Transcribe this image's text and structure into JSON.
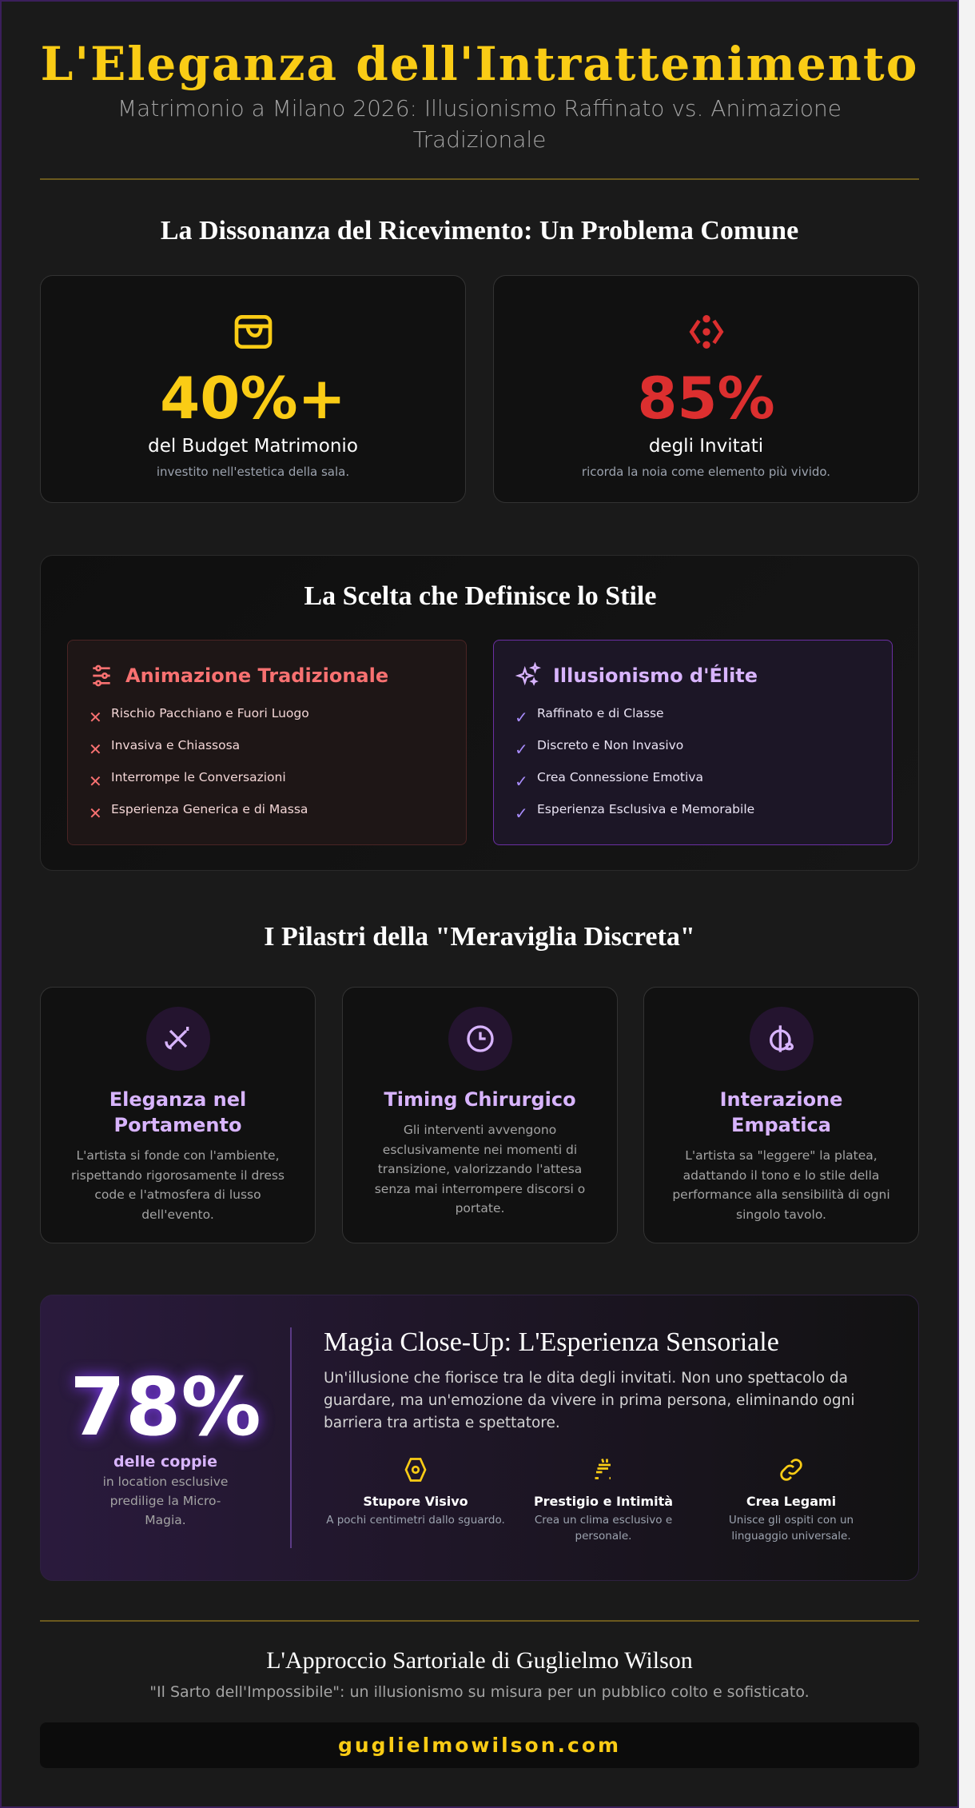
{
  "header": {
    "title": "L'Eleganza dell'Intrattenimento",
    "subtitle": "Matrimonio a Milano 2026: Illusionismo Raffinato vs. Animazione Tradizionale"
  },
  "problem": {
    "title": "La Dissonanza del Ricevimento: Un Problema Comune",
    "stats": [
      {
        "icon": "wallet-icon",
        "value": "40%+",
        "label": "del Budget Matrimonio",
        "sub": "investito nell'estetica della sala.",
        "color": "#facc15"
      },
      {
        "icon": "boredom-icon",
        "value": "85%",
        "label": "degli Invitati",
        "sub": "ricorda la noia come elemento più vivido.",
        "color": "#dc2f2f"
      }
    ]
  },
  "comparison": {
    "title": "La Scelta che Definisce lo Stile",
    "traditional": {
      "icon": "sliders-icon",
      "title": "Animazione Tradizionale",
      "color": "#f87171",
      "items": [
        "Rischio Pacchiano e Fuori Luogo",
        "Invasiva e Chiassosa",
        "Interrompe le Conversazioni",
        "Esperienza Generica e di Massa"
      ]
    },
    "elite": {
      "icon": "sparkles-icon",
      "title": "Illusionismo d'Élite",
      "color": "#d8b4fe",
      "items": [
        "Raffinato e di Classe",
        "Discreto e Non Invasivo",
        "Crea Connessione Emotiva",
        "Esperienza Esclusiva e Memorabile"
      ]
    }
  },
  "pillars": {
    "title": "I Pilastri della \"Meraviglia Discreta\"",
    "items": [
      {
        "icon": "magic-wand-icon",
        "title": "Eleganza nel Portamento",
        "desc": "L'artista si fonde con l'ambiente, rispettando rigorosamente il dress code e l'atmosfera di lusso dell'evento."
      },
      {
        "icon": "clock-icon",
        "title": "Timing Chirurgico",
        "desc": "Gli interventi avvengono esclusivamente nei momenti di transizione, valorizzando l'attesa senza mai interrompere discorsi o portate."
      },
      {
        "icon": "brain-heart-icon",
        "title": "Interazione Empatica",
        "desc": "L'artista sa \"leggere\" la platea, adattando il tono e lo stile della performance alla sensibilità di ogni singolo tavolo."
      }
    ]
  },
  "closeup": {
    "stat": "78%",
    "stat_label": "delle coppie",
    "stat_sub": "in location esclusive predilige la Micro-Magia.",
    "title": "Magia Close-Up: L'Esperienza Sensoriale",
    "text": "Un'illusione che fiorisce tra le dita degli invitati. Non uno spettacolo da guardare, ma un'emozione da vivere in prima persona, eliminando ogni barriera tra artista e spettatore.",
    "features": [
      {
        "icon": "hexagon-icon",
        "title": "Stupore Visivo",
        "desc": "A pochi centimetri dallo sguardo."
      },
      {
        "icon": "champagne-icon",
        "title": "Prestigio e Intimità",
        "desc": "Crea un clima esclusivo e personale."
      },
      {
        "icon": "link-icon",
        "title": "Crea Legami",
        "desc": "Unisce gli ospiti con un linguaggio universale."
      }
    ]
  },
  "footer": {
    "title": "L'Approccio Sartoriale di Guglielmo Wilson",
    "subtitle": "\"Il Sarto dell'Impossibile\": un illusionismo su misura per un pubblico colto e sofisticato.",
    "link": "guglielmowilson.com"
  },
  "colors": {
    "gold": "#facc15",
    "red": "#dc2f2f",
    "lavender": "#d8b4fe",
    "background": "#1a1a1a"
  }
}
